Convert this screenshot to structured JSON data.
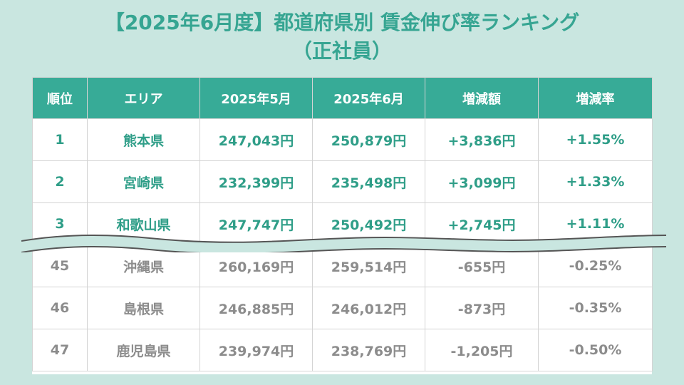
{
  "title": {
    "line1": "【2025年6月度】都道府県別 賃金伸び率ランキング",
    "line2": "（正社員）"
  },
  "table": {
    "headers": [
      "順位",
      "エリア",
      "2025年5月",
      "2025年6月",
      "増減額",
      "増減率"
    ],
    "top_rows": [
      [
        "1",
        "熊本県",
        "247,043円",
        "250,879円",
        "+3,836円",
        "+1.55%"
      ],
      [
        "2",
        "宮崎県",
        "232,399円",
        "235,498円",
        "+3,099円",
        "+1.33%"
      ],
      [
        "3",
        "和歌山県",
        "247,747円",
        "250,492円",
        "+2,745円",
        "+1.11%"
      ]
    ],
    "bottom_rows": [
      [
        "45",
        "沖縄県",
        "260,169円",
        "259,514円",
        "-655円",
        "-0.25%"
      ],
      [
        "46",
        "島根県",
        "246,885円",
        "246,012円",
        "-873円",
        "-0.35%"
      ],
      [
        "47",
        "鹿児島県",
        "239,974円",
        "238,769円",
        "-1,205円",
        "-0.50%"
      ]
    ]
  },
  "colors": {
    "background": "#c9e6e0",
    "header": "#37ab97",
    "accent_text": "#2f9e88",
    "muted_text": "#8c8c8c"
  }
}
